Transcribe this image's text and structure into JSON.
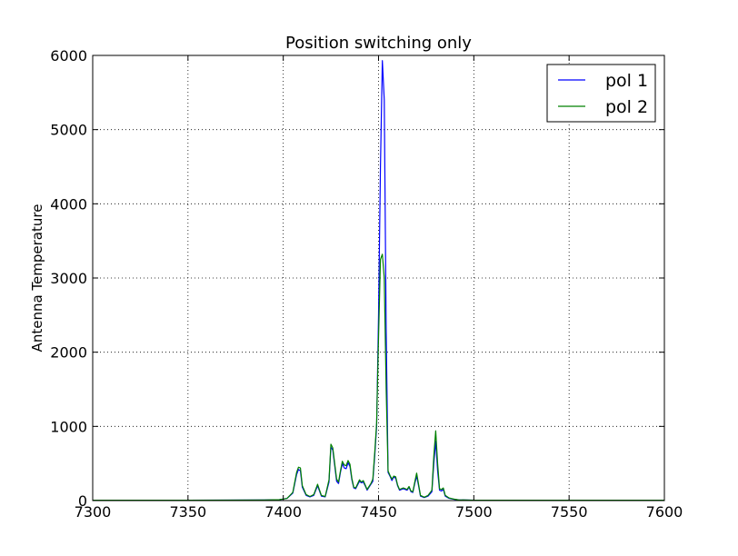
{
  "chart_data": {
    "type": "line",
    "title": "Position switching only",
    "xlabel": "",
    "ylabel": "Antenna Temperature",
    "xlim": [
      7300,
      7600
    ],
    "ylim": [
      0,
      6000
    ],
    "xticks": [
      7300,
      7350,
      7400,
      7450,
      7500,
      7550,
      7600
    ],
    "yticks": [
      0,
      1000,
      2000,
      3000,
      4000,
      5000,
      6000
    ],
    "grid": true,
    "legend_position": "top-right",
    "series": [
      {
        "name": "pol 1",
        "color": "#0000ff",
        "points": [
          [
            7300,
            5
          ],
          [
            7350,
            5
          ],
          [
            7390,
            8
          ],
          [
            7398,
            12
          ],
          [
            7402,
            30
          ],
          [
            7405,
            100
          ],
          [
            7407,
            350
          ],
          [
            7408,
            420
          ],
          [
            7409,
            400
          ],
          [
            7410,
            180
          ],
          [
            7412,
            70
          ],
          [
            7414,
            50
          ],
          [
            7416,
            70
          ],
          [
            7418,
            200
          ],
          [
            7420,
            60
          ],
          [
            7422,
            50
          ],
          [
            7424,
            250
          ],
          [
            7425,
            720
          ],
          [
            7426,
            680
          ],
          [
            7428,
            260
          ],
          [
            7429,
            230
          ],
          [
            7430,
            380
          ],
          [
            7431,
            500
          ],
          [
            7432,
            440
          ],
          [
            7433,
            430
          ],
          [
            7434,
            510
          ],
          [
            7435,
            460
          ],
          [
            7436,
            280
          ],
          [
            7437,
            170
          ],
          [
            7438,
            160
          ],
          [
            7440,
            260
          ],
          [
            7441,
            240
          ],
          [
            7442,
            250
          ],
          [
            7443,
            200
          ],
          [
            7444,
            140
          ],
          [
            7446,
            220
          ],
          [
            7447,
            260
          ],
          [
            7448,
            600
          ],
          [
            7449,
            1000
          ],
          [
            7450,
            2500
          ],
          [
            7451,
            4500
          ],
          [
            7452,
            5930
          ],
          [
            7453,
            5400
          ],
          [
            7454,
            2300
          ],
          [
            7455,
            380
          ],
          [
            7456,
            330
          ],
          [
            7457,
            270
          ],
          [
            7458,
            320
          ],
          [
            7459,
            300
          ],
          [
            7460,
            200
          ],
          [
            7461,
            140
          ],
          [
            7463,
            160
          ],
          [
            7465,
            140
          ],
          [
            7466,
            180
          ],
          [
            7467,
            120
          ],
          [
            7468,
            110
          ],
          [
            7469,
            230
          ],
          [
            7470,
            330
          ],
          [
            7471,
            200
          ],
          [
            7472,
            60
          ],
          [
            7474,
            40
          ],
          [
            7476,
            60
          ],
          [
            7478,
            120
          ],
          [
            7479,
            500
          ],
          [
            7480,
            800
          ],
          [
            7481,
            400
          ],
          [
            7482,
            140
          ],
          [
            7483,
            130
          ],
          [
            7484,
            150
          ],
          [
            7485,
            60
          ],
          [
            7487,
            30
          ],
          [
            7490,
            15
          ],
          [
            7492,
            10
          ],
          [
            7500,
            5
          ],
          [
            7550,
            5
          ],
          [
            7600,
            5
          ]
        ]
      },
      {
        "name": "pol 2",
        "color": "#008000",
        "points": [
          [
            7300,
            5
          ],
          [
            7350,
            5
          ],
          [
            7390,
            8
          ],
          [
            7398,
            12
          ],
          [
            7402,
            30
          ],
          [
            7405,
            110
          ],
          [
            7407,
            380
          ],
          [
            7408,
            450
          ],
          [
            7409,
            440
          ],
          [
            7410,
            200
          ],
          [
            7412,
            80
          ],
          [
            7414,
            55
          ],
          [
            7416,
            80
          ],
          [
            7418,
            220
          ],
          [
            7420,
            70
          ],
          [
            7422,
            55
          ],
          [
            7424,
            280
          ],
          [
            7425,
            760
          ],
          [
            7426,
            710
          ],
          [
            7428,
            290
          ],
          [
            7429,
            250
          ],
          [
            7430,
            400
          ],
          [
            7431,
            530
          ],
          [
            7432,
            480
          ],
          [
            7433,
            470
          ],
          [
            7434,
            540
          ],
          [
            7435,
            490
          ],
          [
            7436,
            300
          ],
          [
            7437,
            180
          ],
          [
            7438,
            170
          ],
          [
            7440,
            280
          ],
          [
            7441,
            250
          ],
          [
            7442,
            270
          ],
          [
            7443,
            210
          ],
          [
            7444,
            150
          ],
          [
            7446,
            230
          ],
          [
            7447,
            290
          ],
          [
            7448,
            650
          ],
          [
            7449,
            1050
          ],
          [
            7450,
            2200
          ],
          [
            7451,
            3250
          ],
          [
            7452,
            3320
          ],
          [
            7453,
            3000
          ],
          [
            7454,
            1500
          ],
          [
            7455,
            400
          ],
          [
            7456,
            340
          ],
          [
            7457,
            290
          ],
          [
            7458,
            330
          ],
          [
            7459,
            320
          ],
          [
            7460,
            210
          ],
          [
            7461,
            150
          ],
          [
            7463,
            170
          ],
          [
            7465,
            150
          ],
          [
            7466,
            190
          ],
          [
            7467,
            130
          ],
          [
            7468,
            120
          ],
          [
            7469,
            250
          ],
          [
            7470,
            370
          ],
          [
            7471,
            220
          ],
          [
            7472,
            70
          ],
          [
            7474,
            45
          ],
          [
            7476,
            70
          ],
          [
            7478,
            140
          ],
          [
            7479,
            600
          ],
          [
            7480,
            940
          ],
          [
            7481,
            500
          ],
          [
            7482,
            160
          ],
          [
            7483,
            150
          ],
          [
            7484,
            170
          ],
          [
            7485,
            70
          ],
          [
            7487,
            35
          ],
          [
            7490,
            18
          ],
          [
            7492,
            10
          ],
          [
            7500,
            5
          ],
          [
            7550,
            5
          ],
          [
            7600,
            5
          ]
        ]
      }
    ]
  }
}
